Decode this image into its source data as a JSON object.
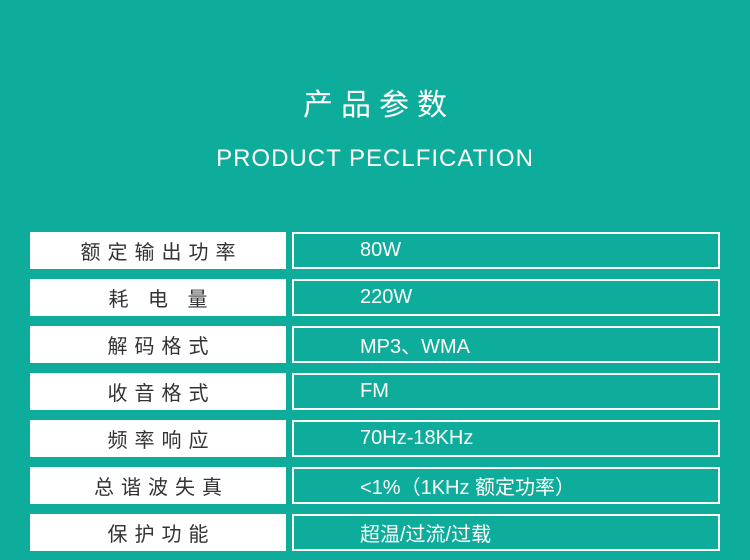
{
  "colors": {
    "background": "#0EAC9A",
    "label_text": "#333333",
    "label_cell_bg": "#FFFFFF",
    "value_text": "#FFFFFF",
    "value_cell_border": "#FFFFFF"
  },
  "header": {
    "title": "产品参数",
    "subtitle": "PRODUCT PECLFICATION"
  },
  "spec_table": {
    "rows": [
      {
        "label": "额定输出功率",
        "value": "80W"
      },
      {
        "label": "耗 电 量",
        "value": "220W"
      },
      {
        "label": "解码格式",
        "value": "MP3、WMA"
      },
      {
        "label": "收音格式",
        "value": "FM"
      },
      {
        "label": "频率响应",
        "value": "70Hz-18KHz"
      },
      {
        "label": "总谐波失真",
        "value": "<1%（1KHz 额定功率）"
      },
      {
        "label": "保护功能",
        "value": "超温/过流/过载"
      }
    ]
  }
}
